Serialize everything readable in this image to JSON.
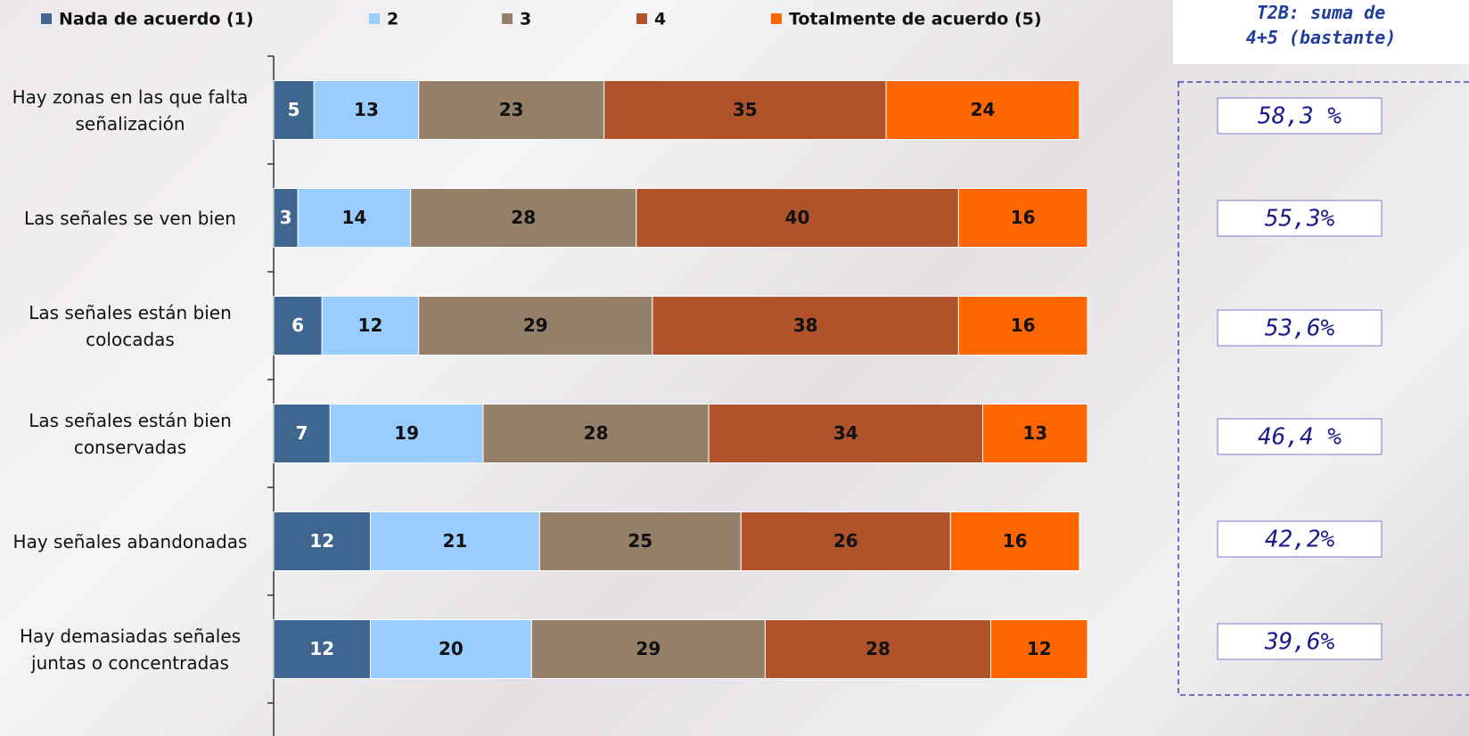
{
  "chart_data": {
    "type": "stacked_barh",
    "categories": [
      "Hay zonas en las que falta\nseñalización",
      "Las señales se ven bien",
      "Las señales están bien\ncolocadas",
      "Las señales están bien\nconservadas",
      "Hay señales abandonadas",
      "Hay demasiadas señales\njuntas o concentradas"
    ],
    "series": [
      {
        "name": "Nada de acuerdo (1)",
        "color": "#3f6690",
        "values": [
          5,
          3,
          6,
          7,
          12,
          12
        ]
      },
      {
        "name": "2",
        "color": "#99ccff",
        "values": [
          13,
          14,
          12,
          19,
          21,
          20
        ]
      },
      {
        "name": "3",
        "color": "#948069",
        "values": [
          23,
          28,
          29,
          28,
          25,
          29
        ]
      },
      {
        "name": "4",
        "color": "#b0532a",
        "values": [
          35,
          40,
          38,
          34,
          26,
          28
        ]
      },
      {
        "name": "Totalmente de acuerdo (5)",
        "color": "#ff6600",
        "values": [
          24,
          16,
          16,
          13,
          16,
          12
        ]
      }
    ],
    "xlim": [
      0,
      101
    ],
    "legend": "top",
    "t2b": {
      "title": "T2B: suma de\n4+5 (bastante)",
      "values": [
        58.3,
        55.3,
        53.6,
        46.4,
        42.2,
        39.6
      ],
      "value_labels": [
        "58,3 %",
        "55,3%",
        "53,6%",
        "46,4 %",
        "42,2%",
        "39,6%"
      ]
    }
  }
}
